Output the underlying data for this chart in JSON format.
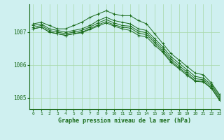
{
  "xlabel": "Graphe pression niveau de la mer (hPa)",
  "bg_color": "#cff0f0",
  "grid_color": "#a8d8a8",
  "line_color": "#1a6b1a",
  "xlim": [
    -0.5,
    23
  ],
  "ylim": [
    1004.65,
    1007.85
  ],
  "yticks": [
    1005,
    1006,
    1007
  ],
  "xticks": [
    0,
    1,
    2,
    3,
    4,
    5,
    6,
    7,
    8,
    9,
    10,
    11,
    12,
    13,
    14,
    15,
    16,
    17,
    18,
    19,
    20,
    21,
    22,
    23
  ],
  "lines": [
    [
      1007.25,
      1007.3,
      1007.2,
      1007.1,
      1007.1,
      1007.2,
      1007.3,
      1007.45,
      1007.55,
      1007.65,
      1007.55,
      1007.5,
      1007.5,
      1007.35,
      1007.25,
      1006.95,
      1006.65,
      1006.35,
      1006.15,
      1005.95,
      1005.75,
      1005.7,
      1005.45,
      1005.1
    ],
    [
      1007.2,
      1007.25,
      1007.1,
      1007.05,
      1007.0,
      1007.05,
      1007.1,
      1007.2,
      1007.35,
      1007.45,
      1007.35,
      1007.3,
      1007.25,
      1007.1,
      1007.05,
      1006.8,
      1006.55,
      1006.25,
      1006.05,
      1005.85,
      1005.65,
      1005.6,
      1005.4,
      1005.05
    ],
    [
      1007.15,
      1007.2,
      1007.05,
      1007.0,
      1006.95,
      1007.0,
      1007.05,
      1007.15,
      1007.28,
      1007.38,
      1007.28,
      1007.2,
      1007.18,
      1007.03,
      1006.98,
      1006.73,
      1006.48,
      1006.18,
      1005.98,
      1005.78,
      1005.58,
      1005.55,
      1005.35,
      1005.0
    ],
    [
      1007.1,
      1007.15,
      1007.0,
      1006.95,
      1006.9,
      1006.95,
      1007.0,
      1007.1,
      1007.22,
      1007.32,
      1007.22,
      1007.15,
      1007.12,
      1006.97,
      1006.92,
      1006.67,
      1006.42,
      1006.12,
      1005.92,
      1005.72,
      1005.52,
      1005.5,
      1005.3,
      1004.95
    ],
    [
      1007.1,
      1007.15,
      1007.0,
      1006.95,
      1006.9,
      1006.95,
      1006.98,
      1007.08,
      1007.18,
      1007.28,
      1007.18,
      1007.1,
      1007.05,
      1006.9,
      1006.85,
      1006.6,
      1006.38,
      1006.08,
      1005.88,
      1005.68,
      1005.5,
      1005.48,
      1005.28,
      1004.92
    ]
  ],
  "marker": "+"
}
